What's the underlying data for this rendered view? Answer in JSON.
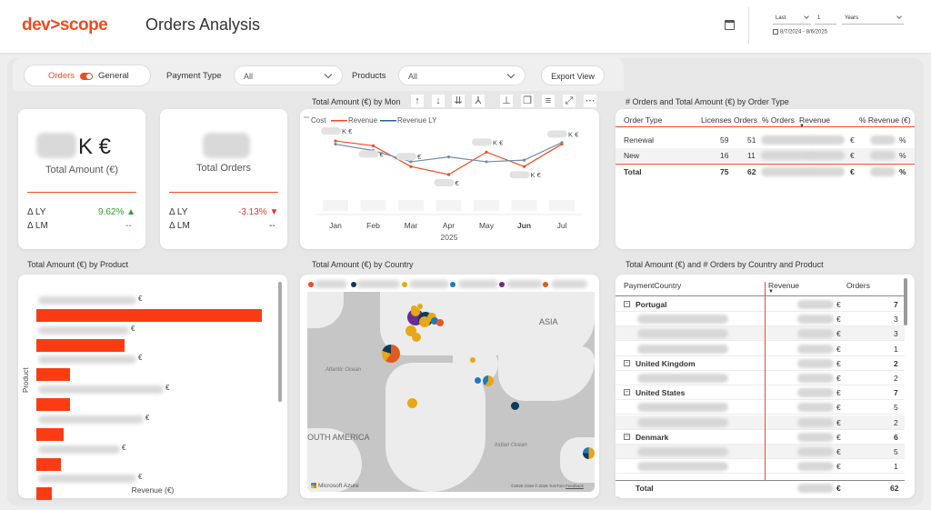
{
  "header": {
    "logo": "dev>scope",
    "title": "Orders Analysis",
    "date_filter": {
      "period": "Last",
      "count": "1",
      "unit": "Years",
      "range": "8/7/2024 - 8/6/2025"
    }
  },
  "filters": {
    "toggle": {
      "left_label": "Orders",
      "right_label": "General",
      "selected": "Orders"
    },
    "payment_type": {
      "label": "Payment Type",
      "value": "All"
    },
    "products": {
      "label": "Products",
      "value": "All"
    },
    "export_label": "Export View"
  },
  "kpi_amount": {
    "value_suffix": "K €",
    "label": "Total Amount (€)",
    "ly_label": "Δ LY",
    "ly_value": "9.62%",
    "lm_label": "Δ LM",
    "lm_value": "--"
  },
  "kpi_orders": {
    "label": "Total Orders",
    "ly_label": "Δ LY",
    "ly_value": "-3.13%",
    "lm_label": "Δ LM",
    "lm_value": "--"
  },
  "line_chart": {
    "title": "Total Amount (€) by Mon",
    "legend": [
      "Cost",
      "Revenue",
      "Revenue LY"
    ],
    "euro": "€",
    "euro_k": "K €",
    "x_year": "2025"
  },
  "chart_data": [
    {
      "type": "line",
      "title": "Total Amount (€) by Mon",
      "categories": [
        "Jan",
        "Feb",
        "Mar",
        "Apr",
        "May",
        "Jun",
        "Jul"
      ],
      "series": [
        {
          "name": "Revenue",
          "values": [
            0.92,
            0.86,
            0.6,
            0.5,
            0.78,
            0.6,
            0.88
          ]
        },
        {
          "name": "Revenue LY",
          "values": [
            0.88,
            0.8,
            0.66,
            0.72,
            0.66,
            0.68,
            0.9
          ]
        }
      ],
      "ylim": [
        0,
        1
      ],
      "xlabel": "2025",
      "highlight_category": "Jun",
      "note": "Values hidden in source (blurred); relative levels only"
    },
    {
      "type": "bar",
      "title": "Total Amount (€) by Product",
      "orientation": "horizontal",
      "xlabel": "Revenue (€)",
      "ylabel": "Product",
      "values": [
        1.0,
        0.39,
        0.15,
        0.15,
        0.12,
        0.11,
        0.07
      ]
    }
  ],
  "order_type_table": {
    "title": "# Orders and Total Amount (€) by Order Type",
    "headers": [
      "Order Type",
      "Licenses",
      "Orders",
      "% Orders",
      "Revenue",
      "% Revenue (€)"
    ],
    "rows": [
      {
        "type": "Renewal",
        "licenses": "59",
        "orders": "51",
        "euro": "€",
        "pct": "%"
      },
      {
        "type": "New",
        "licenses": "16",
        "orders": "11",
        "euro": "€",
        "pct": "%"
      }
    ],
    "total": {
      "type": "Total",
      "licenses": "75",
      "orders": "62",
      "euro": "€",
      "pct": "%"
    }
  },
  "product_chart": {
    "title": "Total Amount (€) by Product",
    "xlabel": "Revenue (€)",
    "ylabel": "Product",
    "euro": "€"
  },
  "country_map": {
    "title": "Total Amount (€) by Country",
    "labels": {
      "asia": "ASIA",
      "atlantic": "Atlantic Ocean",
      "south_america": "OUTH AMERICA",
      "indian": "Indian Ocean"
    },
    "attribution": "©2025 OSM  © 2025 TomTom",
    "feedback": "Feedback",
    "provider": "Microsoft Azure",
    "legend_colors": [
      "#f04a23",
      "#0e3a5c",
      "#e6a817",
      "#1f77c4",
      "#6a2c91",
      "#e05a1f"
    ]
  },
  "matrix": {
    "title": "Total Amount (€) and # Orders by Country and Product",
    "headers": [
      "PaymentCountry",
      "Revenue",
      "Orders"
    ],
    "euro": "€",
    "rows": [
      {
        "kind": "country",
        "name": "Portugal",
        "orders": "7"
      },
      {
        "kind": "product",
        "orders": "3"
      },
      {
        "kind": "product",
        "orders": "3"
      },
      {
        "kind": "product",
        "orders": "1"
      },
      {
        "kind": "country",
        "name": "United Kingdom",
        "orders": "2"
      },
      {
        "kind": "product",
        "orders": "2"
      },
      {
        "kind": "country",
        "name": "United States",
        "orders": "7"
      },
      {
        "kind": "product",
        "orders": "5"
      },
      {
        "kind": "product",
        "orders": "2"
      },
      {
        "kind": "country",
        "name": "Denmark",
        "orders": "6"
      },
      {
        "kind": "product",
        "orders": "5"
      },
      {
        "kind": "product",
        "orders": "1"
      }
    ],
    "total_label": "Total",
    "total_orders": "62"
  }
}
